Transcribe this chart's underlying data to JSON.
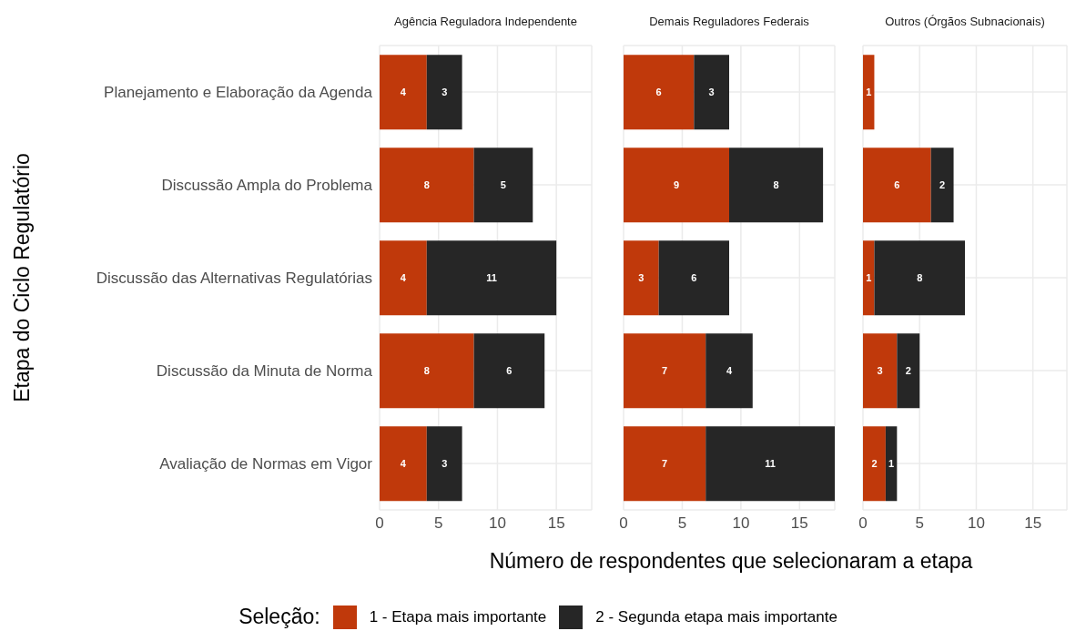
{
  "chart_data": [
    {
      "type": "bar",
      "orientation": "horizontal",
      "stacked": true,
      "title": "Agência Reguladora Independente",
      "ylabel": "Etapa do Ciclo Regulatório",
      "legend_title": "Seleção:",
      "legend": "bottom",
      "categories": [
        "Planejamento e Elaboração da Agenda",
        "Discussão Ampla do Problema",
        "Discussão das Alternativas Regulatórias",
        "Discussão da Minuta de Norma",
        "Avaliação de Normas em Vigor"
      ],
      "series": [
        {
          "name": "1 - Etapa mais importante",
          "color": "#c0390b",
          "values": [
            4,
            8,
            4,
            8,
            4
          ]
        },
        {
          "name": "2 - Segunda etapa mais importante",
          "color": "#262626",
          "values": [
            3,
            5,
            11,
            6,
            3
          ]
        }
      ],
      "xlim": [
        0,
        18
      ],
      "xticks": [
        0,
        5,
        10,
        15
      ],
      "grid": true,
      "data_labels": true
    },
    {
      "type": "bar",
      "orientation": "horizontal",
      "stacked": true,
      "title": "Demais Reguladores Federais",
      "xlabel": "Número de respondentes que selecionaram a etapa",
      "categories": [
        null,
        null,
        null,
        null,
        null
      ],
      "series": [
        {
          "color": "#c0390b",
          "values": [
            6,
            9,
            3,
            7,
            7
          ]
        },
        {
          "color": "#262626",
          "values": [
            3,
            8,
            6,
            4,
            11
          ]
        }
      ],
      "xlim": [
        0,
        18
      ],
      "xticks": [
        0,
        5,
        10,
        15
      ],
      "grid": true,
      "data_labels": true
    },
    {
      "type": "bar",
      "orientation": "horizontal",
      "stacked": true,
      "title": "Outros (Órgãos Subnacionais)",
      "categories": [
        null,
        null,
        null,
        null,
        null
      ],
      "series": [
        {
          "color": "#c0390b",
          "values": [
            1,
            6,
            1,
            3,
            2
          ]
        },
        {
          "color": "#262626",
          "values": [
            null,
            2,
            8,
            2,
            1
          ]
        }
      ],
      "xlim": [
        0,
        18
      ],
      "xticks": [
        0,
        5,
        10,
        15
      ],
      "grid": true,
      "data_labels": true
    }
  ]
}
